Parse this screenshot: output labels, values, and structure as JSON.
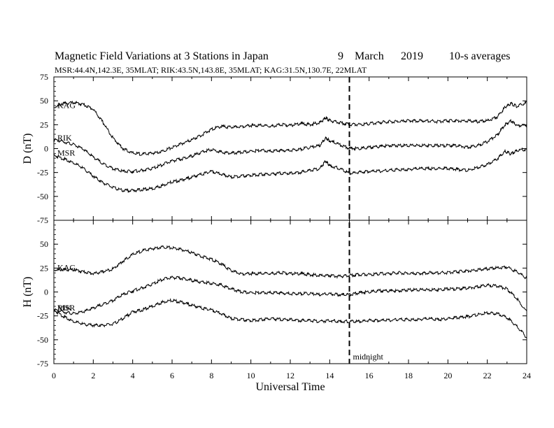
{
  "header": {
    "title": "Magnetic Field Variations at 3 Stations in Japan",
    "day": "9",
    "month": "March",
    "year": "2019",
    "averages": "10-s averages",
    "stations": "MSR:44.4N,142.3E, 35MLAT;  RIK:43.5N,143.8E, 35MLAT;  KAG:31.5N,130.7E, 22MLAT"
  },
  "chart_data": [
    {
      "type": "line",
      "panel": "D",
      "ylabel": "D (nT)",
      "ylim": [
        -75,
        75
      ],
      "yticks": [
        75,
        50,
        25,
        0,
        -25,
        -50,
        -75
      ],
      "xlim": [
        0,
        24
      ],
      "series": [
        {
          "name": "KAG",
          "x": [
            0,
            0.5,
            1,
            1.5,
            2,
            2.5,
            3,
            3.5,
            4,
            4.5,
            5,
            5.5,
            6,
            6.5,
            7,
            7.5,
            8,
            8.5,
            9,
            9.5,
            10,
            10.5,
            11,
            11.5,
            12,
            12.5,
            13,
            13.5,
            13.8,
            14,
            14.5,
            15,
            15.5,
            16,
            16.5,
            17,
            17.5,
            18,
            18.5,
            19,
            19.5,
            20,
            20.5,
            21,
            21.5,
            22,
            22.5,
            22.9,
            23.2,
            23.5,
            24
          ],
          "y": [
            44,
            48,
            49,
            47,
            42,
            28,
            12,
            1,
            -4,
            -5,
            -4,
            -2,
            2,
            6,
            10,
            15,
            21,
            24,
            23,
            24,
            25,
            25,
            24,
            26,
            25,
            27,
            26,
            28,
            33,
            30,
            28,
            26,
            26,
            27,
            28,
            29,
            29,
            30,
            30,
            30,
            29,
            30,
            30,
            30,
            29,
            30,
            34,
            44,
            48,
            45,
            49
          ]
        },
        {
          "name": "RIK",
          "x": [
            0,
            0.5,
            1,
            1.5,
            2,
            2.5,
            3,
            3.5,
            4,
            4.5,
            5,
            5.5,
            6,
            6.5,
            7,
            7.5,
            8,
            8.5,
            9,
            9.5,
            10,
            10.5,
            11,
            11.5,
            12,
            12.5,
            13,
            13.5,
            13.8,
            14,
            14.5,
            15,
            15.5,
            16,
            16.5,
            17,
            17.5,
            18,
            18.5,
            19,
            19.5,
            20,
            20.5,
            21,
            21.5,
            22,
            22.5,
            22.9,
            23.2,
            23.5,
            24
          ],
          "y": [
            10,
            8,
            5,
            0,
            -8,
            -15,
            -20,
            -23,
            -23,
            -22,
            -20,
            -16,
            -12,
            -10,
            -7,
            -3,
            0,
            -3,
            -4,
            -3,
            -2,
            -1,
            -2,
            -1,
            -1,
            0,
            2,
            4,
            12,
            9,
            5,
            1,
            1,
            2,
            3,
            4,
            4,
            4,
            4,
            4,
            4,
            4,
            4,
            2,
            4,
            8,
            15,
            26,
            30,
            25,
            25
          ]
        },
        {
          "name": "MSR",
          "x": [
            0,
            0.5,
            1,
            1.5,
            2,
            2.5,
            3,
            3.5,
            4,
            4.5,
            5,
            5.5,
            6,
            6.5,
            7,
            7.5,
            8,
            8.5,
            9,
            9.5,
            10,
            10.5,
            11,
            11.5,
            12,
            12.5,
            13,
            13.5,
            13.8,
            14,
            14.5,
            15,
            15.5,
            16,
            16.5,
            17,
            17.5,
            18,
            18.5,
            19,
            19.5,
            20,
            20.5,
            21,
            21.5,
            22,
            22.5,
            22.9,
            23.2,
            23.5,
            24
          ],
          "y": [
            -6,
            -10,
            -14,
            -20,
            -28,
            -35,
            -40,
            -43,
            -43,
            -42,
            -41,
            -38,
            -34,
            -32,
            -29,
            -26,
            -23,
            -26,
            -29,
            -28,
            -27,
            -26,
            -26,
            -25,
            -25,
            -24,
            -22,
            -20,
            -12,
            -17,
            -20,
            -25,
            -24,
            -23,
            -23,
            -22,
            -21,
            -21,
            -20,
            -20,
            -20,
            -20,
            -21,
            -22,
            -19,
            -16,
            -10,
            -2,
            -5,
            -1,
            0
          ]
        }
      ]
    },
    {
      "type": "line",
      "panel": "H",
      "ylabel": "H (nT)",
      "xlabel": "Universal Time",
      "ylim": [
        -75,
        75
      ],
      "yticks": [
        50,
        25,
        0,
        -25,
        -50,
        -75
      ],
      "xlim": [
        0,
        24
      ],
      "xticks": [
        0,
        2,
        4,
        6,
        8,
        10,
        12,
        14,
        16,
        18,
        20,
        22,
        24
      ],
      "series": [
        {
          "name": "KAG",
          "x": [
            0,
            0.5,
            1,
            1.5,
            2,
            2.5,
            3,
            3.5,
            4,
            4.5,
            5,
            5.5,
            6,
            6.5,
            7,
            7.5,
            8,
            8.5,
            9,
            9.5,
            10,
            10.5,
            11,
            11.5,
            12,
            12.5,
            13,
            13.5,
            14,
            14.5,
            15,
            15.5,
            16,
            16.5,
            17,
            17.5,
            18,
            18.5,
            19,
            19.5,
            20,
            20.5,
            21,
            21.5,
            22,
            22.5,
            23,
            23.5,
            24
          ],
          "y": [
            24,
            24,
            24,
            22,
            20,
            22,
            25,
            33,
            40,
            44,
            46,
            48,
            47,
            45,
            42,
            38,
            35,
            30,
            23,
            20,
            20,
            20,
            20,
            21,
            20,
            20,
            19,
            18,
            18,
            17,
            18,
            19,
            19,
            20,
            20,
            21,
            20,
            20,
            21,
            21,
            21,
            22,
            23,
            24,
            25,
            26,
            27,
            22,
            15
          ]
        },
        {
          "name": "RIK",
          "x": [
            0,
            0.5,
            1,
            1.5,
            2,
            2.5,
            3,
            3.5,
            4,
            4.5,
            5,
            5.5,
            6,
            6.5,
            7,
            7.5,
            8,
            8.5,
            9,
            9.5,
            10,
            10.5,
            11,
            11.5,
            12,
            12.5,
            13,
            13.5,
            14,
            14.5,
            15,
            15.5,
            16,
            16.5,
            17,
            17.5,
            18,
            18.5,
            19,
            19.5,
            20,
            20.5,
            21,
            21.5,
            22,
            22.5,
            23,
            23.5,
            24
          ],
          "y": [
            -18,
            -20,
            -22,
            -20,
            -16,
            -12,
            -8,
            -2,
            2,
            5,
            9,
            14,
            16,
            15,
            13,
            11,
            10,
            8,
            4,
            1,
            0,
            0,
            0,
            0,
            -1,
            -1,
            -1,
            -2,
            -1,
            -2,
            -2,
            0,
            1,
            2,
            2,
            2,
            3,
            3,
            3,
            3,
            4,
            4,
            5,
            6,
            8,
            7,
            4,
            -6,
            -20
          ]
        },
        {
          "name": "MSR",
          "x": [
            0,
            0.5,
            1,
            1.5,
            2,
            2.5,
            3,
            3.5,
            4,
            4.5,
            5,
            5.5,
            6,
            6.5,
            7,
            7.5,
            8,
            8.5,
            9,
            9.5,
            10,
            10.5,
            11,
            11.5,
            12,
            12.5,
            13,
            13.5,
            14,
            14.5,
            15,
            15.5,
            16,
            16.5,
            17,
            17.5,
            18,
            18.5,
            19,
            19.5,
            20,
            20.5,
            21,
            21.5,
            22,
            22.5,
            23,
            23.5,
            24
          ],
          "y": [
            -18,
            -25,
            -30,
            -33,
            -34,
            -34,
            -33,
            -27,
            -20,
            -18,
            -14,
            -10,
            -8,
            -10,
            -13,
            -16,
            -18,
            -22,
            -27,
            -28,
            -29,
            -28,
            -27,
            -28,
            -28,
            -29,
            -29,
            -30,
            -29,
            -30,
            -30,
            -30,
            -29,
            -29,
            -29,
            -28,
            -28,
            -28,
            -27,
            -28,
            -27,
            -26,
            -25,
            -23,
            -21,
            -22,
            -26,
            -35,
            -47
          ]
        }
      ]
    }
  ],
  "annotation": {
    "marker_label": "midnight",
    "marker_x": 15
  }
}
